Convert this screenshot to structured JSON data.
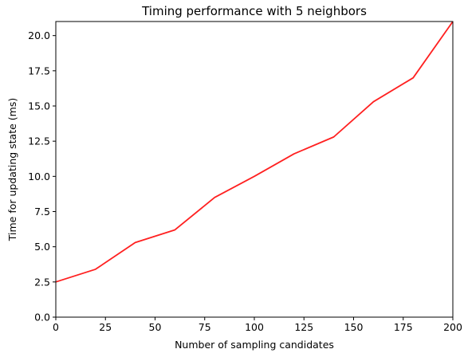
{
  "chart_data": {
    "type": "line",
    "title": "Timing performance with 5 neighbors",
    "xlabel": "Number of sampling candidates",
    "ylabel": "Time for updating state (ms)",
    "xlim": [
      0,
      200
    ],
    "ylim": [
      0,
      21
    ],
    "xticks": [
      0,
      25,
      50,
      75,
      100,
      125,
      150,
      175,
      200
    ],
    "yticks": [
      0,
      2.5,
      5,
      7.5,
      10,
      12.5,
      15,
      17.5,
      20
    ],
    "xtick_labels": [
      "0",
      "25",
      "50",
      "75",
      "100",
      "125",
      "150",
      "175",
      "200"
    ],
    "ytick_labels": [
      "0.0",
      "2.5",
      "5.0",
      "7.5",
      "10.0",
      "12.5",
      "15.0",
      "17.5",
      "20.0"
    ],
    "grid": false,
    "x": [
      0,
      20,
      40,
      60,
      80,
      100,
      120,
      140,
      160,
      180,
      200
    ],
    "series": [
      {
        "color": "#ff2020",
        "values": [
          2.5,
          3.4,
          5.3,
          6.2,
          8.5,
          10.0,
          11.6,
          12.8,
          15.3,
          17.0,
          21.0
        ]
      }
    ]
  }
}
